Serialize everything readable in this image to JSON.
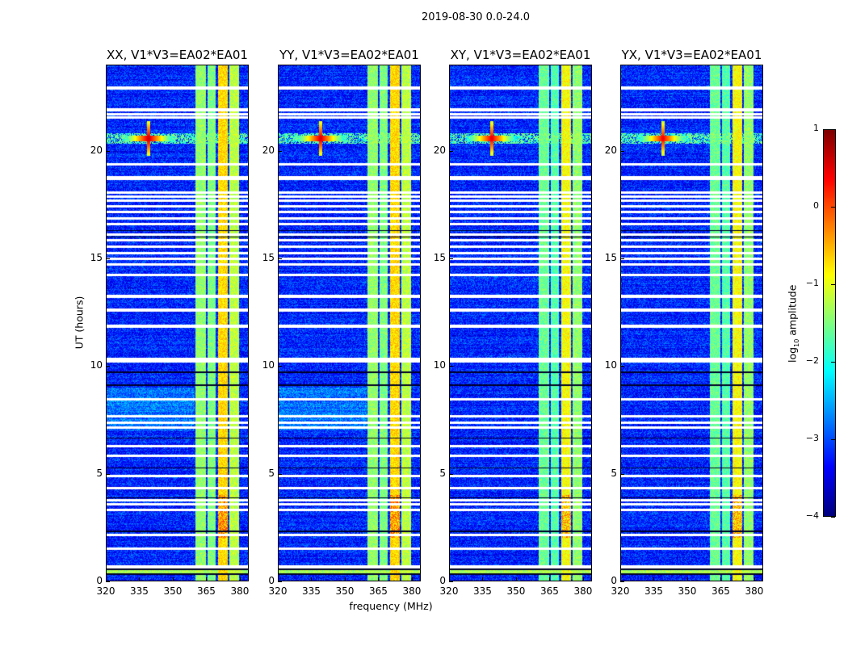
{
  "chart_data": {
    "type": "heatmap",
    "title": "2019-08-30 0.0-24.0",
    "xlabel": "frequency (MHz)",
    "ylabel": "UT (hours)",
    "xlim": [
      320,
      384
    ],
    "ylim": [
      0,
      24
    ],
    "xticks": [
      320,
      335,
      350,
      365,
      380
    ],
    "yticks": [
      0,
      5,
      10,
      15,
      20
    ],
    "panels": [
      {
        "title": "XX, V1*V3=EA02*EA01",
        "rfi_strength": 1.0
      },
      {
        "title": "YY, V1*V3=EA02*EA01",
        "rfi_strength": 0.9
      },
      {
        "title": "XY, V1*V3=EA02*EA01",
        "rfi_strength": 0.8
      },
      {
        "title": "YX, V1*V3=EA02*EA01",
        "rfi_strength": 0.7
      }
    ],
    "colorbar": {
      "label_main": "log",
      "label_sub": "10",
      "label_rest": " amplitude",
      "range": [
        -4,
        1
      ],
      "ticks": [
        1,
        0,
        -1,
        -2,
        -3,
        -4
      ],
      "tick_labels": [
        "1",
        "0",
        "−1",
        "−2",
        "−3",
        "−4"
      ],
      "colormap": "jet"
    },
    "base_level": -3.2,
    "bright_bands_mhz": [
      [
        360.4,
        365.0,
        -1.4
      ],
      [
        365.8,
        369.5,
        -1.5
      ],
      [
        370.5,
        374.9,
        -0.7
      ],
      [
        375.6,
        380.0,
        -1.2
      ]
    ],
    "rfi_source": {
      "freq_mhz": 339,
      "ut_hours": 20.6,
      "level": 0.6
    },
    "flagged_ut_hours": [
      22.95,
      21.93,
      21.71,
      21.56,
      19.39,
      18.75,
      18.07,
      17.89,
      17.7,
      17.44,
      17.17,
      16.87,
      16.61,
      16.12,
      15.86,
      15.56,
      15.26,
      15.0,
      14.74,
      14.25,
      13.24,
      12.6,
      11.85,
      10.27,
      8.44,
      7.65,
      7.35,
      7.12,
      6.26,
      5.81,
      4.87,
      4.31,
      3.75,
      3.56,
      3.3,
      2.14,
      1.5,
      0.64
    ],
    "dark_ut_hours": [
      16.31,
      16.01,
      9.71,
      9.11,
      6.64,
      5.25,
      3.86,
      2.29,
      0.52,
      0.3
    ]
  }
}
